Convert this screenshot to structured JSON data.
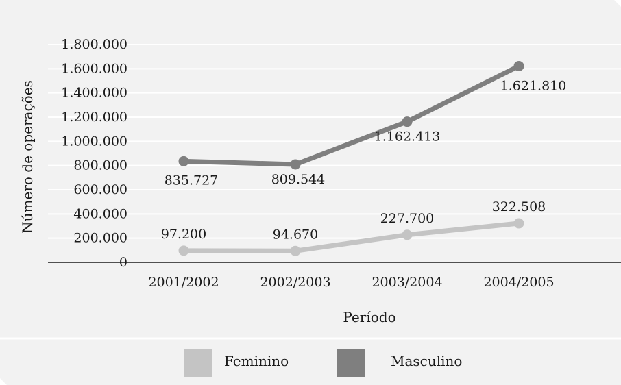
{
  "chart_data": {
    "type": "line",
    "categories": [
      "2001/2002",
      "2002/2003",
      "2003/2004",
      "2004/2005"
    ],
    "series": [
      {
        "name": "Feminino",
        "values": [
          97200,
          94670,
          227700,
          322508
        ],
        "labels": [
          "97.200",
          "94.670",
          "227.700",
          "322.508"
        ],
        "color": "#c4c4c4"
      },
      {
        "name": "Masculino",
        "values": [
          835727,
          809544,
          1162413,
          1621810
        ],
        "labels": [
          "835.727",
          "809.544",
          "1.162.413",
          "1.621.810"
        ],
        "color": "#7f7f7f"
      }
    ],
    "xlabel": "Período",
    "ylabel": "Número de operações",
    "ylim": [
      0,
      1800000
    ],
    "yticks": [
      0,
      200000,
      400000,
      600000,
      800000,
      1000000,
      1200000,
      1400000,
      1600000,
      1800000
    ],
    "ytick_labels": [
      "0",
      "200.000",
      "400.000",
      "600.000",
      "800.000",
      "1.000.000",
      "1.200.000",
      "1.400.000",
      "1.600.000",
      "1.800.000"
    ],
    "grid": true,
    "legend": "bottom"
  },
  "colors": {
    "panel": "#f2f2f2",
    "grid": "#ffffff",
    "axis": "#1a1a1a"
  }
}
